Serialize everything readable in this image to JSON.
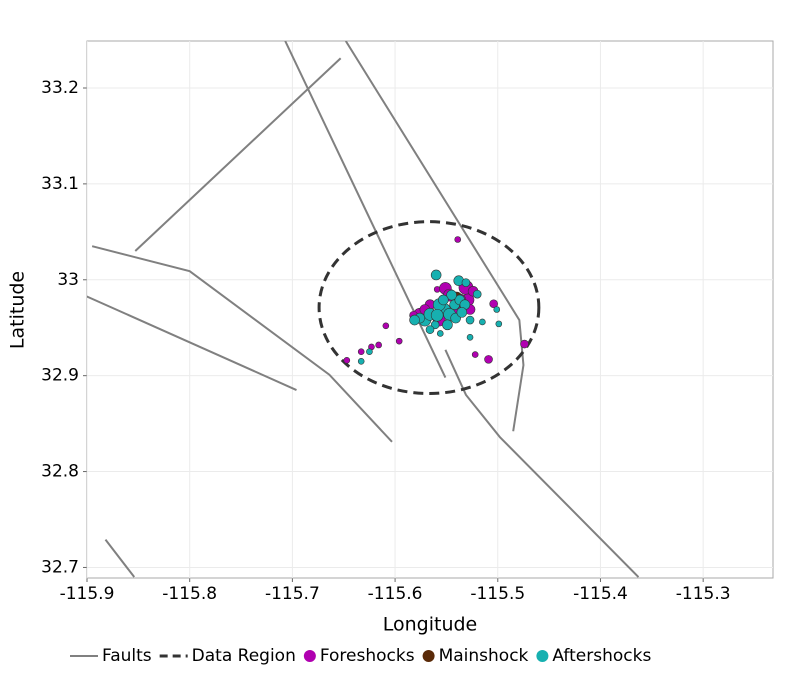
{
  "chart_data": {
    "type": "scatter",
    "xlabel": "Longitude",
    "ylabel": "Latitude",
    "xlim": [
      -115.9,
      -115.232
    ],
    "ylim": [
      32.689,
      33.249
    ],
    "xticks": [
      -115.9,
      -115.8,
      -115.7,
      -115.6,
      -115.5,
      -115.4,
      -115.3
    ],
    "yticks": [
      32.7,
      32.8,
      32.9,
      33,
      33.1,
      33.2
    ],
    "grid": true,
    "legend": "bottom",
    "faults": {
      "name": "Faults",
      "color": "#808080",
      "lines": [
        {
          "x": [
            -115.707,
            -115.551
          ],
          "y": [
            33.249,
            32.898
          ]
        },
        {
          "x": [
            -115.648,
            -115.479,
            -115.475,
            -115.485
          ],
          "y": [
            33.249,
            32.958,
            32.911,
            32.842
          ]
        },
        {
          "x": [
            -115.853,
            -115.653
          ],
          "y": [
            33.03,
            33.231
          ]
        },
        {
          "x": [
            -115.895,
            -115.8,
            -115.664,
            -115.603
          ],
          "y": [
            33.035,
            33.009,
            32.901,
            32.831
          ]
        },
        {
          "x": [
            -115.901,
            -115.696
          ],
          "y": [
            32.983,
            32.885
          ]
        },
        {
          "x": [
            -115.551,
            -115.531,
            -115.498,
            -115.363
          ],
          "y": [
            32.927,
            32.88,
            32.836,
            32.69
          ]
        },
        {
          "x": [
            -115.882,
            -115.854
          ],
          "y": [
            32.729,
            32.69
          ]
        }
      ]
    },
    "region": {
      "name": "Data Region",
      "color": "#333333",
      "center_x": -115.567,
      "center_y": 32.971,
      "radius_x": 0.107,
      "radius_y": 0.0896
    },
    "series": [
      {
        "name": "Foreshocks",
        "color": "#b000b0",
        "x": [
          -115.539,
          -115.559,
          -115.551,
          -115.531,
          -115.529,
          -115.524,
          -115.566,
          -115.576,
          -115.582,
          -115.609,
          -115.616,
          -115.623,
          -115.633,
          -115.647,
          -115.596,
          -115.522,
          -115.509,
          -115.504,
          -115.474,
          -115.537,
          -115.542,
          -115.557,
          -115.571,
          -115.527,
          -115.547
        ],
        "values": [
          33.042,
          32.99,
          32.991,
          32.992,
          32.979,
          32.988,
          32.974,
          32.964,
          32.963,
          32.952,
          32.932,
          32.93,
          32.925,
          32.916,
          32.936,
          32.922,
          32.917,
          32.975,
          32.933,
          32.979,
          32.969,
          32.958,
          32.969,
          32.969,
          32.984
        ],
        "sizes": [
          3,
          3,
          6,
          7,
          6,
          5,
          5,
          6,
          4,
          3,
          3,
          3,
          3,
          3,
          3,
          3,
          4,
          4,
          4,
          6,
          6,
          6,
          5,
          5,
          6
        ]
      },
      {
        "name": "Mainshock",
        "color": "#5a2a08",
        "x": [
          -115.54
        ],
        "values": [
          32.982
        ],
        "sizes": [
          5
        ]
      },
      {
        "name": "Aftershocks",
        "color": "#17b0b0",
        "x": [
          -115.56,
          -115.538,
          -115.531,
          -115.52,
          -115.515,
          -115.501,
          -115.499,
          -115.527,
          -115.556,
          -115.625,
          -115.633,
          -115.571,
          -115.566,
          -115.576,
          -115.552,
          -115.547,
          -115.542,
          -115.537,
          -115.557,
          -115.561,
          -115.532,
          -115.527,
          -115.549,
          -115.566,
          -115.581,
          -115.545,
          -115.541,
          -115.559,
          -115.553,
          -115.535
        ],
        "values": [
          33.005,
          32.999,
          32.997,
          32.985,
          32.956,
          32.969,
          32.954,
          32.94,
          32.944,
          32.925,
          32.915,
          32.958,
          32.964,
          32.96,
          32.969,
          32.964,
          32.974,
          32.979,
          32.974,
          32.953,
          32.974,
          32.958,
          32.953,
          32.948,
          32.958,
          32.984,
          32.96,
          32.963,
          32.979,
          32.966
        ],
        "sizes": [
          5,
          5,
          4,
          4,
          3,
          3,
          3,
          3,
          3,
          3,
          3,
          6,
          6,
          5,
          6,
          6,
          5,
          5,
          6,
          4,
          5,
          4,
          5,
          4,
          5,
          5,
          5,
          6,
          5,
          5
        ]
      }
    ]
  }
}
